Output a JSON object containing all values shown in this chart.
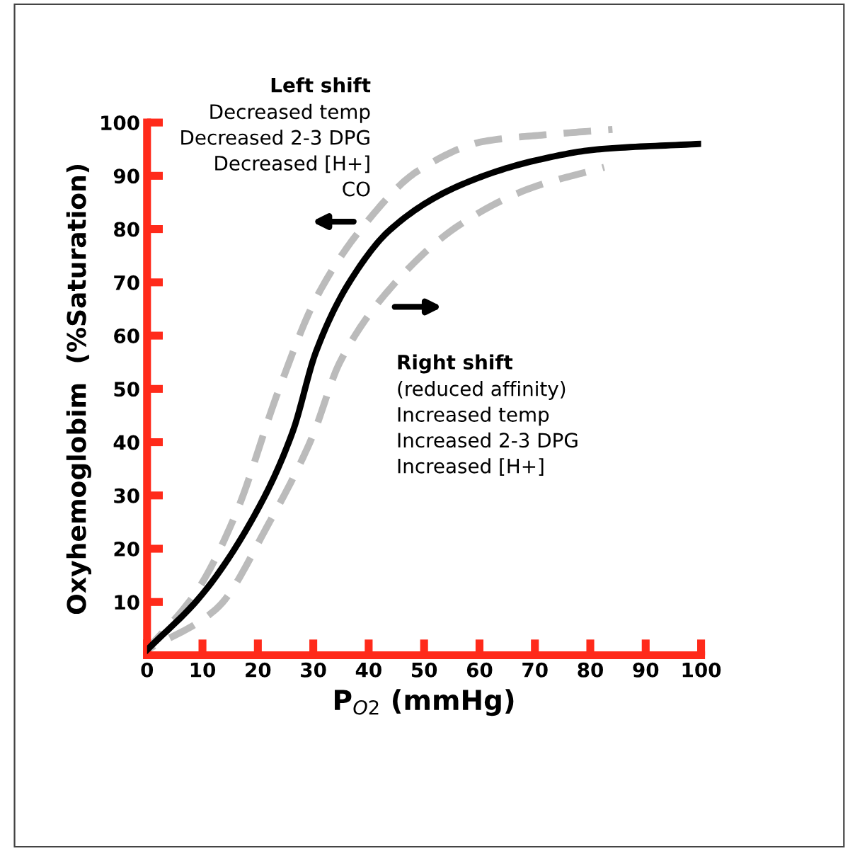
{
  "chart_data": {
    "type": "line",
    "xlabel": "P$_{O2}$ (mmHg)",
    "ylabel": "Oxyhemoglobim  (%Saturation)",
    "xlim": [
      0,
      100
    ],
    "ylim": [
      0,
      100
    ],
    "xticks": [
      0,
      10,
      20,
      30,
      40,
      50,
      60,
      70,
      80,
      90,
      100
    ],
    "yticks": [
      10,
      20,
      30,
      40,
      50,
      60,
      70,
      80,
      90,
      100
    ],
    "grid": false,
    "legend": false,
    "series": [
      {
        "color": "#000000",
        "line_style": "solid",
        "x": [
          0,
          10,
          20.3,
          26.3,
          30.5,
          36.5,
          44,
          56,
          70.6,
          81.7,
          100
        ],
        "values": [
          1,
          11.5,
          28,
          42,
          57,
          70,
          80,
          88,
          93,
          95,
          96
        ]
      },
      {
        "color": "#bbbbbb",
        "line_style": "dashed",
        "x": [
          0,
          9.2,
          16,
          23.7,
          30.5,
          39,
          49,
          61,
          73,
          84
        ],
        "values": [
          1,
          12.4,
          26.5,
          49.6,
          67,
          80.5,
          91,
          96.5,
          97.8,
          98.7
        ]
      },
      {
        "color": "#bbbbbb",
        "line_style": "dashed",
        "x": [
          0,
          12.6,
          22,
          29.7,
          34.8,
          44,
          56,
          69,
          82.5
        ],
        "values": [
          1,
          8.8,
          24.8,
          40.7,
          55,
          69,
          80.5,
          87.6,
          91.6
        ]
      }
    ],
    "annotations": [
      "Left shift",
      "Decreased temp\nDecreased 2-3 DPG\nDecreased [H+]\nCO",
      "Right shift",
      "(reduced affinity)\nIncreased temp\nIncreased 2-3 DPG\nIncreased [H+]"
    ]
  }
}
